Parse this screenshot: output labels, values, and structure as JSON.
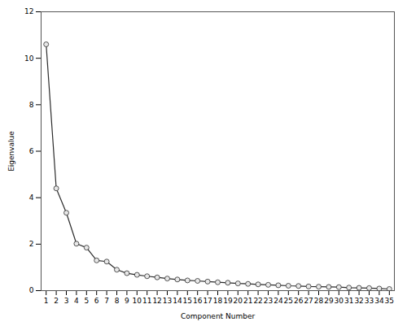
{
  "chart_data": {
    "type": "line",
    "x": [
      1,
      2,
      3,
      4,
      5,
      6,
      7,
      8,
      9,
      10,
      11,
      12,
      13,
      14,
      15,
      16,
      17,
      18,
      19,
      20,
      21,
      22,
      23,
      24,
      25,
      26,
      27,
      28,
      29,
      30,
      31,
      32,
      33,
      34,
      35
    ],
    "values": [
      10.6,
      4.4,
      3.35,
      2.02,
      1.85,
      1.3,
      1.25,
      0.9,
      0.75,
      0.68,
      0.62,
      0.57,
      0.52,
      0.48,
      0.44,
      0.42,
      0.39,
      0.36,
      0.34,
      0.31,
      0.29,
      0.27,
      0.25,
      0.23,
      0.21,
      0.2,
      0.18,
      0.17,
      0.16,
      0.15,
      0.13,
      0.12,
      0.11,
      0.09,
      0.07
    ],
    "xlabel": "Component Number",
    "ylabel": "Eigenvalue",
    "xlim": [
      0.5,
      35.5
    ],
    "ylim": [
      0,
      12
    ],
    "xticks": [
      1,
      2,
      3,
      4,
      5,
      6,
      7,
      8,
      9,
      10,
      11,
      12,
      13,
      14,
      15,
      16,
      17,
      18,
      19,
      20,
      21,
      22,
      23,
      24,
      25,
      26,
      27,
      28,
      29,
      30,
      31,
      32,
      33,
      34,
      35
    ],
    "yticks": [
      0,
      2,
      4,
      6,
      8,
      10,
      12
    ],
    "color": "#2c2c2c",
    "marker": "circle",
    "grid": false
  }
}
